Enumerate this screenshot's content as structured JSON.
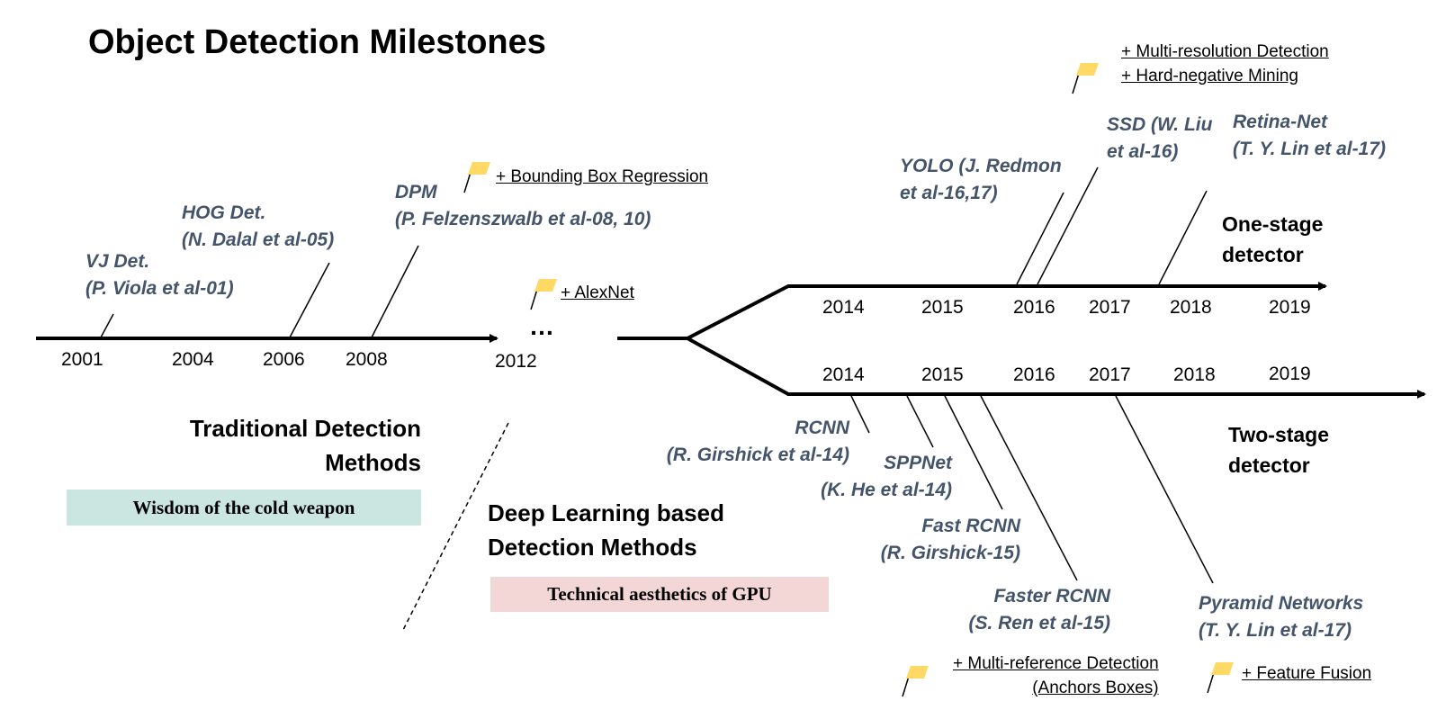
{
  "title": "Object Detection Milestones",
  "ellipsis": "…",
  "traditional": {
    "years": [
      "2001",
      "2004",
      "2006",
      "2008",
      "2012"
    ],
    "detectors": [
      {
        "name": "VJ Det.",
        "authors": "(P. Viola et al-01)"
      },
      {
        "name": "HOG Det.",
        "authors": "(N. Dalal et al-05)"
      },
      {
        "name": "DPM",
        "authors": "(P. Felzenszwalb et al-08, 10)"
      }
    ],
    "heading": [
      "Traditional Detection",
      "Methods"
    ],
    "tagline": "Wisdom of the cold weapon",
    "tagline_color": "#cbe5e1"
  },
  "deep_learning": {
    "heading": [
      "Deep Learning based",
      "Detection Methods"
    ],
    "tagline": "Technical aesthetics of GPU",
    "tagline_color": "#f3d6d6"
  },
  "notes": {
    "bbox_regression": "+ Bounding Box Regression",
    "alexnet": "+ AlexNet",
    "multi_resolution": "+ Multi-resolution Detection",
    "hard_negative": "+ Hard-negative Mining",
    "multi_reference": "+ Multi-reference Detection",
    "anchors": "(Anchors Boxes)",
    "feature_fusion": "+ Feature Fusion"
  },
  "one_stage": {
    "label": [
      "One-stage",
      "detector"
    ],
    "years": [
      "2014",
      "2015",
      "2016",
      "2017",
      "2018",
      "2019"
    ],
    "detectors": [
      {
        "name": "YOLO (J. Redmon",
        "authors": "et al-16,17)"
      },
      {
        "name": "SSD (W. Liu",
        "authors": "et al-16)"
      },
      {
        "name": "Retina-Net",
        "authors": "(T. Y. Lin et al-17)"
      }
    ]
  },
  "two_stage": {
    "label": [
      "Two-stage",
      "detector"
    ],
    "years": [
      "2014",
      "2015",
      "2016",
      "2017",
      "2018",
      "2019"
    ],
    "detectors": [
      {
        "name": "RCNN",
        "authors": "(R. Girshick et al-14)"
      },
      {
        "name": "SPPNet",
        "authors": "(K. He et al-14)"
      },
      {
        "name": "Fast RCNN",
        "authors": "(R. Girshick-15)"
      },
      {
        "name": "Faster RCNN",
        "authors": "(S. Ren et al-15)"
      },
      {
        "name": "Pyramid Networks",
        "authors": "(T. Y. Lin et al-17)"
      }
    ]
  },
  "colors": {
    "detector_text": "#44546a",
    "flag": "#ffd966",
    "line": "#000000"
  }
}
